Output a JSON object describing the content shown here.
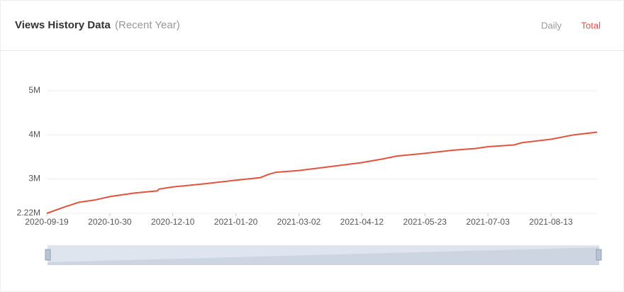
{
  "header": {
    "title": "Views History Data",
    "subtitle": "(Recent Year)",
    "tabs": [
      "Daily",
      "Total"
    ]
  },
  "chart_data": {
    "type": "line",
    "x": [
      "2020-09-19",
      "2020-10-01",
      "2020-10-10",
      "2020-10-20",
      "2020-10-30",
      "2020-11-15",
      "2020-11-30",
      "2020-12-01",
      "2020-12-10",
      "2020-12-31",
      "2021-01-20",
      "2021-02-05",
      "2021-02-10",
      "2021-02-15",
      "2021-03-02",
      "2021-03-20",
      "2021-04-12",
      "2021-04-25",
      "2021-05-05",
      "2021-05-23",
      "2021-06-10",
      "2021-06-25",
      "2021-07-03",
      "2021-07-20",
      "2021-07-25",
      "2021-08-13",
      "2021-08-28",
      "2021-09-12"
    ],
    "series": [
      {
        "name": "Total",
        "color": "#e2533f",
        "values": [
          2220000,
          2370000,
          2470000,
          2520000,
          2600000,
          2680000,
          2730000,
          2770000,
          2820000,
          2890000,
          2970000,
          3030000,
          3100000,
          3150000,
          3190000,
          3270000,
          3370000,
          3450000,
          3520000,
          3580000,
          3650000,
          3690000,
          3730000,
          3770000,
          3820000,
          3900000,
          4000000,
          4060000
        ]
      }
    ],
    "xlim": [
      "2020-09-19",
      "2021-09-12"
    ],
    "xticks": [
      "2020-09-19",
      "2020-10-30",
      "2020-12-10",
      "2021-01-20",
      "2021-03-02",
      "2021-04-12",
      "2021-05-23",
      "2021-07-03",
      "2021-08-13"
    ],
    "ylim": [
      2220000,
      5000000
    ],
    "yticks": [
      {
        "value": 2220000,
        "label": "2.22M"
      },
      {
        "value": 3000000,
        "label": "3M"
      },
      {
        "value": 4000000,
        "label": "4M"
      },
      {
        "value": 5000000,
        "label": "5M"
      }
    ],
    "grid": true
  }
}
